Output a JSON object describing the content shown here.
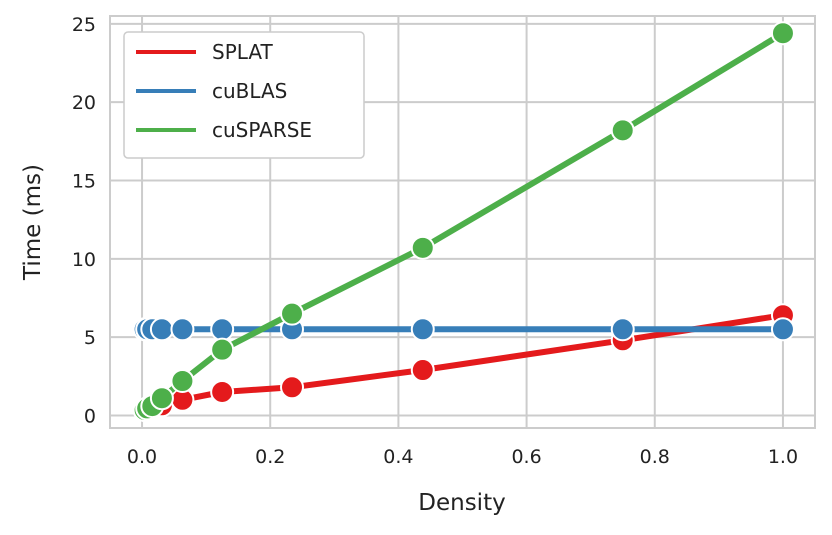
{
  "chart_data": {
    "type": "line",
    "xlabel": "Density",
    "ylabel": "Time (ms)",
    "xlim": [
      -0.05,
      1.05
    ],
    "ylim": [
      -0.8,
      25.5
    ],
    "xticks": [
      "0.0",
      "0.2",
      "0.4",
      "0.6",
      "0.8",
      "1.0"
    ],
    "xtick_values": [
      0,
      0.2,
      0.4,
      0.6,
      0.8,
      1.0
    ],
    "yticks": [
      "0",
      "5",
      "10",
      "15",
      "20",
      "25"
    ],
    "ytick_values": [
      0,
      5,
      10,
      15,
      20,
      25
    ],
    "grid": true,
    "legend_position": "top-left",
    "series": [
      {
        "name": "SPLAT",
        "color": "#e41a1c",
        "x": [
          0.004,
          0.008,
          0.016,
          0.031,
          0.063,
          0.125,
          0.234,
          0.438,
          0.75,
          1.0
        ],
        "y": [
          0.35,
          0.4,
          0.5,
          0.65,
          1.0,
          1.5,
          1.8,
          2.9,
          4.8,
          6.4
        ]
      },
      {
        "name": "cuBLAS",
        "color": "#377eb8",
        "x": [
          0.004,
          0.008,
          0.016,
          0.031,
          0.063,
          0.125,
          0.234,
          0.438,
          0.75,
          1.0
        ],
        "y": [
          5.5,
          5.5,
          5.5,
          5.5,
          5.5,
          5.5,
          5.5,
          5.5,
          5.5,
          5.5
        ]
      },
      {
        "name": "cuSPARSE",
        "color": "#4daf4a",
        "x": [
          0.004,
          0.008,
          0.016,
          0.031,
          0.063,
          0.125,
          0.234,
          0.438,
          0.75,
          1.0
        ],
        "y": [
          0.35,
          0.45,
          0.6,
          1.1,
          2.2,
          4.2,
          6.5,
          10.7,
          18.2,
          24.4
        ]
      }
    ]
  }
}
